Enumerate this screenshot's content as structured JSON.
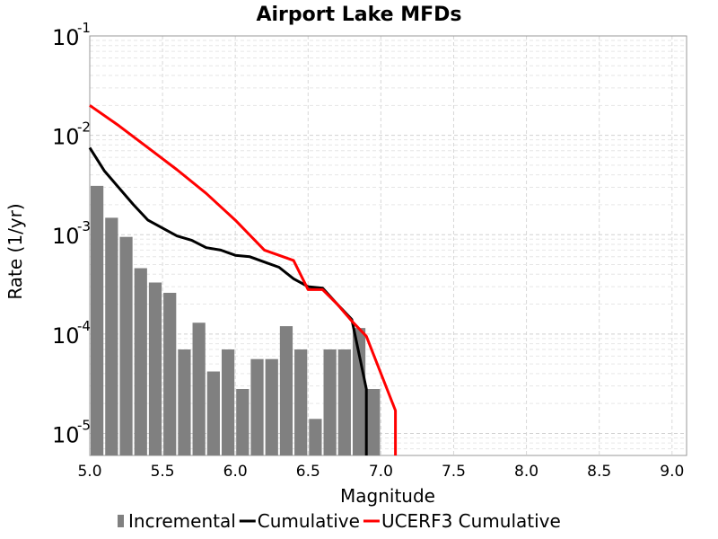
{
  "chart_data": {
    "type": "bar",
    "title": "Airport Lake MFDs",
    "xlabel": "Magnitude",
    "ylabel": "Rate (1/yr)",
    "xlim": [
      5.0,
      9.1
    ],
    "ylim": [
      6e-06,
      0.1
    ],
    "yscale": "log",
    "grid": true,
    "x_ticks": [
      "5.0",
      "5.5",
      "6.0",
      "6.5",
      "7.0",
      "7.5",
      "8.0",
      "8.5",
      "9.0"
    ],
    "y_ticks": [
      {
        "base": "10",
        "exp": "-5",
        "value": 1e-05
      },
      {
        "base": "10",
        "exp": "-4",
        "value": 0.0001
      },
      {
        "base": "10",
        "exp": "-3",
        "value": 0.001
      },
      {
        "base": "10",
        "exp": "-2",
        "value": 0.01
      },
      {
        "base": "10",
        "exp": "-1",
        "value": 0.1
      }
    ],
    "legend_position": "bottom",
    "series": [
      {
        "name": "Incremental",
        "kind": "bar",
        "color": "#808080",
        "x": [
          5.05,
          5.15,
          5.25,
          5.35,
          5.45,
          5.55,
          5.65,
          5.75,
          5.85,
          5.95,
          6.05,
          6.15,
          6.25,
          6.35,
          6.45,
          6.55,
          6.65,
          6.75,
          6.85,
          6.95
        ],
        "y": [
          0.0031,
          0.00148,
          0.00095,
          0.00046,
          0.00033,
          0.00026,
          7e-05,
          0.00013,
          4.2e-05,
          7e-05,
          2.8e-05,
          5.6e-05,
          5.6e-05,
          0.00012,
          7e-05,
          1.4e-05,
          7e-05,
          7e-05,
          0.000115,
          2.8e-05
        ]
      },
      {
        "name": "Cumulative",
        "kind": "line",
        "color": "#000000",
        "x": [
          5.0,
          5.1,
          5.3,
          5.4,
          5.6,
          5.7,
          5.8,
          5.9,
          6.0,
          6.1,
          6.2,
          6.3,
          6.4,
          6.5,
          6.6,
          6.7,
          6.8,
          6.9,
          6.9
        ],
        "y": [
          0.0075,
          0.0044,
          0.002,
          0.0014,
          0.00097,
          0.00088,
          0.00074,
          0.0007,
          0.00062,
          0.0006,
          0.00053,
          0.00047,
          0.00036,
          0.0003,
          0.00029,
          0.0002,
          0.00014,
          2.8e-05,
          6e-06
        ]
      },
      {
        "name": "UCERF3 Cumulative",
        "kind": "line",
        "color": "#ff0000",
        "x": [
          5.0,
          5.2,
          5.4,
          5.6,
          5.8,
          6.0,
          6.2,
          6.4,
          6.5,
          6.6,
          6.7,
          6.8,
          6.9,
          7.1,
          7.1
        ],
        "y": [
          0.02,
          0.0125,
          0.0075,
          0.0045,
          0.0026,
          0.0014,
          0.0007,
          0.00055,
          0.00028,
          0.00028,
          0.0002,
          0.000135,
          9.5e-05,
          1.7e-05,
          6e-06
        ]
      }
    ]
  }
}
